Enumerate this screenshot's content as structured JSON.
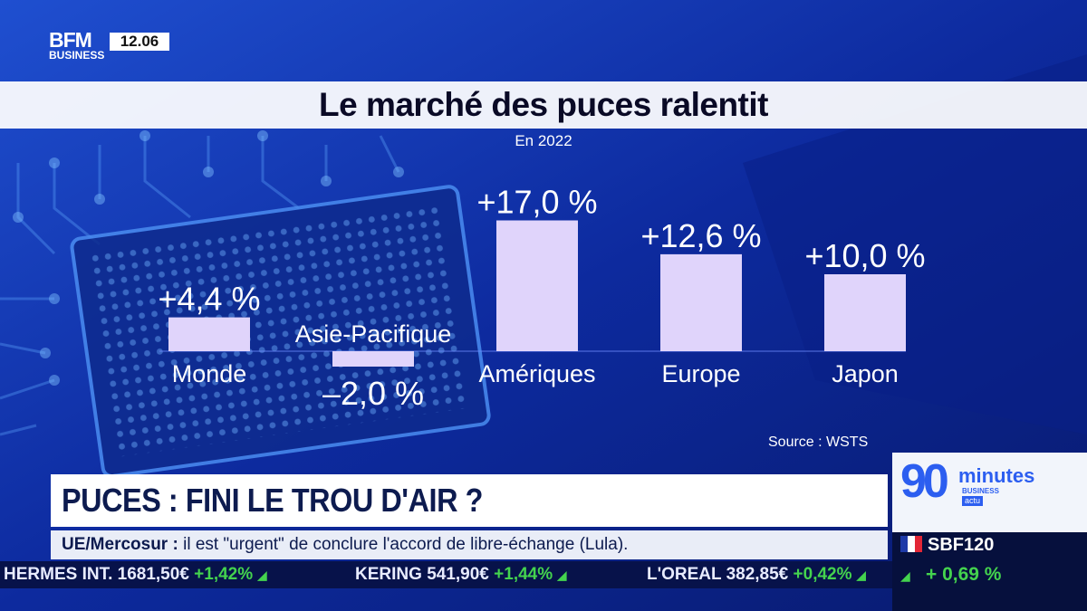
{
  "channel": {
    "brand": "BFM",
    "sub": "BUSINESS",
    "time": "12.06"
  },
  "chart_data": {
    "type": "bar",
    "title": "Le marché des puces ralentit",
    "subtitle": "En 2022",
    "categories": [
      "Monde",
      "Asie-Pacifique",
      "Amériques",
      "Europe",
      "Japon"
    ],
    "values": [
      4.4,
      -2.0,
      17.0,
      12.6,
      10.0
    ],
    "value_labels": [
      "+4,4 %",
      "–2,0 %",
      "+17,0 %",
      "+12,6 %",
      "+10,0 %"
    ],
    "unit": "%",
    "ylim": [
      -2.0,
      17.0
    ],
    "source": "Source : WSTS",
    "bar_color": "#e0d4fb"
  },
  "headline": "PUCES : FINI LE TROU D'AIR ?",
  "news": {
    "topic": "UE/Mercosur :",
    "text": " il est \"urgent\" de conclure l'accord de libre-échange (Lula)."
  },
  "ticker": [
    {
      "name": "HERMES INT.",
      "price": "1681,50€",
      "change": "+1,42%"
    },
    {
      "name": "KERING",
      "price": "541,90€",
      "change": "+1,44%"
    },
    {
      "name": "L'OREAL",
      "price": "382,85€",
      "change": "+0,42%"
    }
  ],
  "program": {
    "number": "90",
    "word": "minutes",
    "sub": "BUSINESS",
    "tag": "actu"
  },
  "index": {
    "name": "SBF120",
    "change": "+ 0,69 %"
  },
  "colors": {
    "positive": "#44d34e",
    "accent": "#2c5ef0"
  }
}
